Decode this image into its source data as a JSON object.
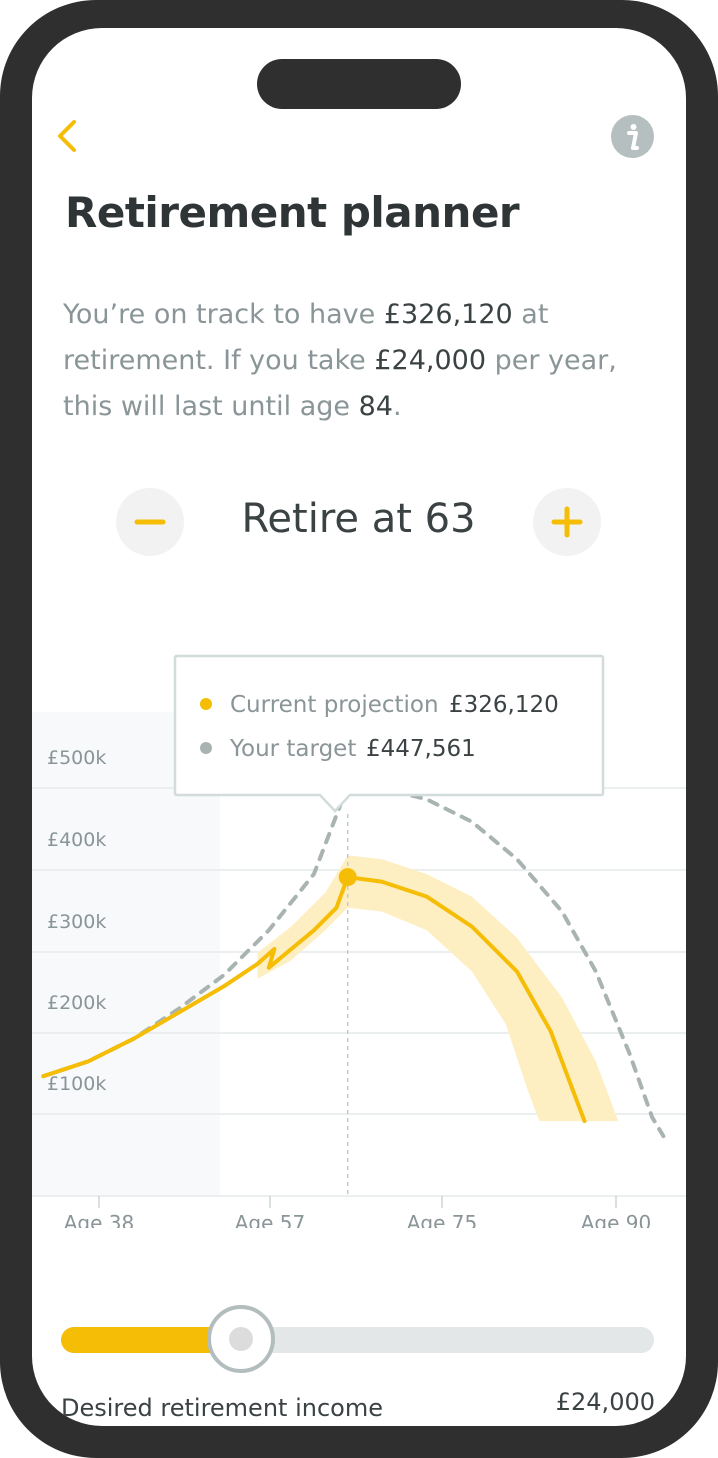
{
  "header": {
    "title": "Retirement planner",
    "back_icon": "chevron-left-icon",
    "info_icon": "info-icon"
  },
  "summary": {
    "part1": "You’re on track to have ",
    "projected_amount": "£326,120",
    "part2": " at retirement. If you take ",
    "annual_income": "£24,000",
    "part3": " per year, this will last until age ",
    "last_until_age": "84",
    "part4": "."
  },
  "stepper": {
    "label": "Retire at 63",
    "decrease_icon": "minus-icon",
    "increase_icon": "plus-icon"
  },
  "tooltip": {
    "projection_label": "Current projection",
    "projection_value": "£326,120",
    "target_label": "Your target",
    "target_value": "£447,561"
  },
  "chart_data": {
    "type": "line",
    "x_ticks": [
      "Age 38",
      "Age 57",
      "Age 75",
      "Age 90"
    ],
    "y_ticks": [
      "£500k",
      "£400k",
      "£300k",
      "£200k",
      "£100k"
    ],
    "series": [
      {
        "name": "Current projection",
        "color": "#f5bd05",
        "style": "solid",
        "points": [
          [
            36,
            60
          ],
          [
            40,
            80
          ],
          [
            44,
            110
          ],
          [
            48,
            145
          ],
          [
            52,
            180
          ],
          [
            55,
            210
          ],
          [
            56.5,
            230
          ],
          [
            56,
            205
          ],
          [
            58,
            230
          ],
          [
            60,
            255
          ],
          [
            62,
            285
          ],
          [
            63,
            326
          ],
          [
            66,
            320
          ],
          [
            70,
            300
          ],
          [
            74,
            260
          ],
          [
            78,
            200
          ],
          [
            81,
            120
          ],
          [
            83,
            40
          ],
          [
            84,
            0
          ]
        ]
      },
      {
        "name": "Your target",
        "color": "#a8b3b2",
        "style": "dashed",
        "points": [
          [
            36,
            60
          ],
          [
            40,
            80
          ],
          [
            44,
            110
          ],
          [
            48,
            150
          ],
          [
            52,
            195
          ],
          [
            56,
            255
          ],
          [
            60,
            330
          ],
          [
            63,
            448
          ],
          [
            66,
            445
          ],
          [
            70,
            430
          ],
          [
            74,
            400
          ],
          [
            78,
            350
          ],
          [
            82,
            280
          ],
          [
            85,
            200
          ],
          [
            88,
            90
          ],
          [
            90,
            5
          ],
          [
            91,
            -20
          ]
        ]
      }
    ],
    "band": {
      "name": "Current projection range",
      "color": "#fdefc2",
      "upper": [
        [
          55,
          225
        ],
        [
          58,
          260
        ],
        [
          61,
          305
        ],
        [
          63,
          355
        ],
        [
          66,
          350
        ],
        [
          70,
          330
        ],
        [
          74,
          300
        ],
        [
          78,
          245
        ],
        [
          82,
          165
        ],
        [
          85,
          80
        ],
        [
          87,
          0
        ]
      ],
      "lower": [
        [
          55,
          190
        ],
        [
          58,
          215
        ],
        [
          61,
          255
        ],
        [
          63,
          285
        ],
        [
          66,
          280
        ],
        [
          70,
          255
        ],
        [
          74,
          200
        ],
        [
          77,
          130
        ],
        [
          79,
          40
        ],
        [
          80,
          0
        ]
      ]
    },
    "marker_x": 63,
    "xlim": [
      35,
      93
    ],
    "ylim": [
      -100,
      600
    ],
    "grid": true
  },
  "slider": {
    "label": "Desired retirement income",
    "value_text": "£24,000",
    "fraction": 0.31
  },
  "colors": {
    "accent": "#f5bd05",
    "target": "#a8b3b2",
    "band": "#fdefc2",
    "text_dark": "#3b4244",
    "text_muted": "#8a9598"
  }
}
